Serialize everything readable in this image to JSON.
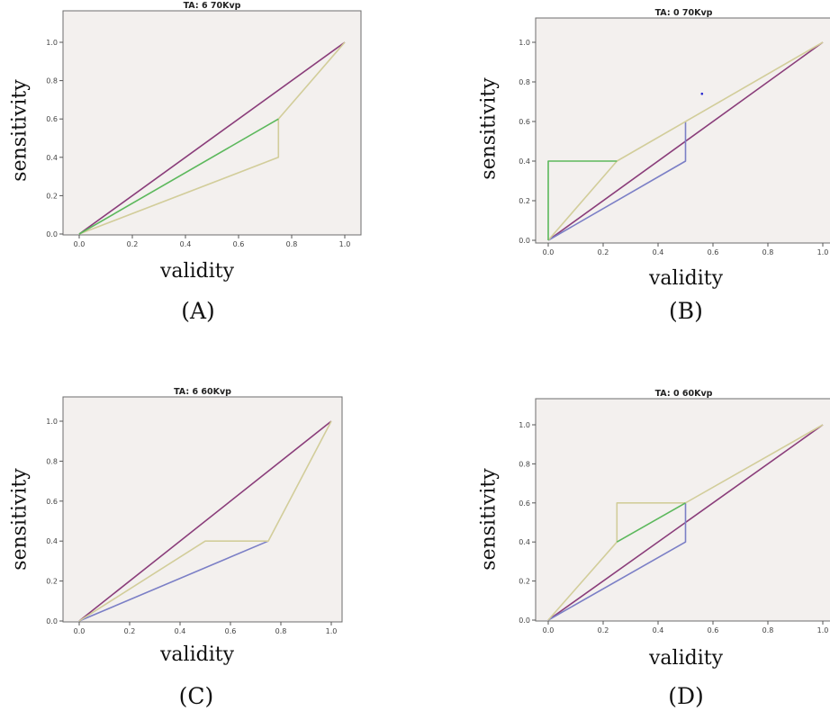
{
  "chart_data": [
    {
      "id": "A",
      "type": "line",
      "panel_label": "(A)",
      "title": "TA: 6  70Kvp",
      "xlabel": "validity",
      "ylabel": "sensitivity",
      "xlim": [
        0,
        1
      ],
      "ylim": [
        0,
        1
      ],
      "xticks": [
        "0.0",
        "0.2",
        "0.4",
        "0.6",
        "0.8",
        "1.0"
      ],
      "yticks": [
        "0.0",
        "0.2",
        "0.4",
        "0.6",
        "0.8",
        "1.0"
      ],
      "grid": false,
      "series": [
        {
          "color": "#8a3d7a",
          "x": [
            0,
            1
          ],
          "y": [
            0,
            1
          ]
        },
        {
          "color": "#d2cd9a",
          "x": [
            0,
            0.75,
            0.75,
            1
          ],
          "y": [
            0,
            0.4,
            0.6,
            1
          ]
        },
        {
          "color": "#5cb85c",
          "x": [
            0,
            0.75
          ],
          "y": [
            0,
            0.6
          ]
        }
      ]
    },
    {
      "id": "B",
      "type": "line",
      "panel_label": "(B)",
      "title": "TA: 0    70Kvp",
      "xlabel": "validity",
      "ylabel": "sensitivity",
      "xlim": [
        0,
        1
      ],
      "ylim": [
        0,
        1
      ],
      "xticks": [
        "0.0",
        "0.2",
        "0.4",
        "0.6",
        "0.8",
        "1.0"
      ],
      "yticks": [
        "0.0",
        "0.2",
        "0.4",
        "0.6",
        "0.8",
        "1.0"
      ],
      "grid": false,
      "series": [
        {
          "color": "#8a3d7a",
          "x": [
            0,
            1
          ],
          "y": [
            0,
            1
          ]
        },
        {
          "color": "#7b7fc6",
          "x": [
            0,
            0.5,
            0.5
          ],
          "y": [
            0,
            0.4,
            0.6
          ]
        },
        {
          "color": "#d2cd9a",
          "x": [
            0,
            0.25,
            1
          ],
          "y": [
            0,
            0.4,
            1
          ]
        },
        {
          "color": "#5cb85c",
          "x": [
            0,
            0,
            0.25
          ],
          "y": [
            0,
            0.4,
            0.4
          ]
        }
      ],
      "points": [
        {
          "color": "#2a2ad0",
          "x": 0.56,
          "y": 0.74
        }
      ]
    },
    {
      "id": "C",
      "type": "line",
      "panel_label": "(C)",
      "title": "TA: 6   60Kvp",
      "xlabel": "validity",
      "ylabel": "sensitivity",
      "xlim": [
        0,
        1
      ],
      "ylim": [
        0,
        1
      ],
      "xticks": [
        "0.0",
        "0.2",
        "0.4",
        "0.6",
        "0.8",
        "1.0"
      ],
      "yticks": [
        "0.0",
        "0.2",
        "0.4",
        "0.6",
        "0.8",
        "1.0"
      ],
      "grid": false,
      "series": [
        {
          "color": "#8a3d7a",
          "x": [
            0,
            1
          ],
          "y": [
            0,
            1
          ]
        },
        {
          "color": "#7b7fc6",
          "x": [
            0,
            0.75
          ],
          "y": [
            0,
            0.4
          ]
        },
        {
          "color": "#d2cd9a",
          "x": [
            0,
            0.5,
            0.75,
            1
          ],
          "y": [
            0,
            0.4,
            0.4,
            1
          ]
        }
      ]
    },
    {
      "id": "D",
      "type": "line",
      "panel_label": "(D)",
      "title": "TA: 0   60Kvp",
      "xlabel": "validity",
      "ylabel": "sensitivity",
      "xlim": [
        0,
        1
      ],
      "ylim": [
        0,
        1
      ],
      "xticks": [
        "0.0",
        "0.2",
        "0.4",
        "0.6",
        "0.8",
        "1.0"
      ],
      "yticks": [
        "0.0",
        "0.2",
        "0.4",
        "0.6",
        "0.8",
        "1.0"
      ],
      "grid": false,
      "series": [
        {
          "color": "#8a3d7a",
          "x": [
            0,
            1
          ],
          "y": [
            0,
            1
          ]
        },
        {
          "color": "#7b7fc6",
          "x": [
            0,
            0.5,
            0.5
          ],
          "y": [
            0,
            0.4,
            0.6
          ]
        },
        {
          "color": "#d2cd9a",
          "x": [
            0,
            0.25,
            0.25,
            0.5,
            1
          ],
          "y": [
            0,
            0.4,
            0.6,
            0.6,
            1
          ]
        },
        {
          "color": "#5cb85c",
          "x": [
            0.25,
            0.5
          ],
          "y": [
            0.4,
            0.6
          ]
        }
      ]
    }
  ]
}
